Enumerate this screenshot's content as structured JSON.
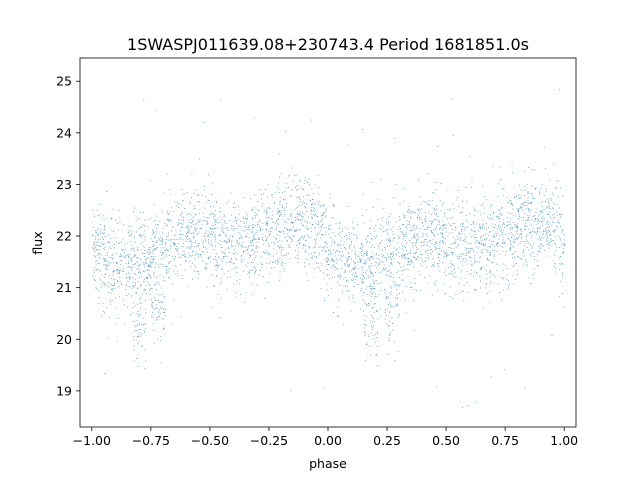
{
  "chart_data": {
    "type": "scatter",
    "title": "1SWASPJ011639.08+230743.4 Period 1681851.0s",
    "xlabel": "phase",
    "ylabel": "flux",
    "xlim": [
      -1.05,
      1.05
    ],
    "ylim": [
      18.3,
      25.45
    ],
    "xticks": [
      -1.0,
      -0.75,
      -0.5,
      -0.25,
      0.0,
      0.25,
      0.5,
      0.75,
      1.0
    ],
    "xtick_labels": [
      "−1.00",
      "−0.75",
      "−0.50",
      "−0.25",
      "0.00",
      "0.25",
      "0.50",
      "0.75",
      "1.00"
    ],
    "yticks": [
      19,
      20,
      21,
      22,
      23,
      24,
      25
    ],
    "ytick_labels": [
      "19",
      "20",
      "21",
      "22",
      "23",
      "24",
      "25"
    ],
    "grid": false,
    "point_color": "#1f77b4",
    "x_range": [
      -1.0,
      1.0
    ],
    "approx_point_count": 40000,
    "trend_phase": [
      0.0,
      0.05,
      0.1,
      0.15,
      0.2,
      0.25,
      0.3,
      0.35,
      0.4,
      0.45,
      0.5,
      0.55,
      0.6,
      0.65,
      0.7,
      0.75,
      0.8,
      0.85,
      0.9,
      0.95,
      1.0
    ],
    "trend_flux": [
      21.75,
      21.55,
      21.45,
      21.4,
      21.45,
      21.6,
      21.75,
      21.95,
      22.05,
      22.05,
      21.95,
      21.85,
      21.8,
      21.8,
      21.85,
      22.0,
      22.1,
      22.2,
      22.25,
      22.2,
      21.75
    ],
    "scatter_sigma": 0.45,
    "low_dips": [
      {
        "phase": 0.18,
        "flux": 20.3
      },
      {
        "phase": 0.27,
        "flux": 20.5
      },
      {
        "phase": -0.8,
        "flux": 20.2
      },
      {
        "phase": -0.72,
        "flux": 20.5
      }
    ],
    "outlier_range": [
      18.6,
      25.1
    ]
  }
}
